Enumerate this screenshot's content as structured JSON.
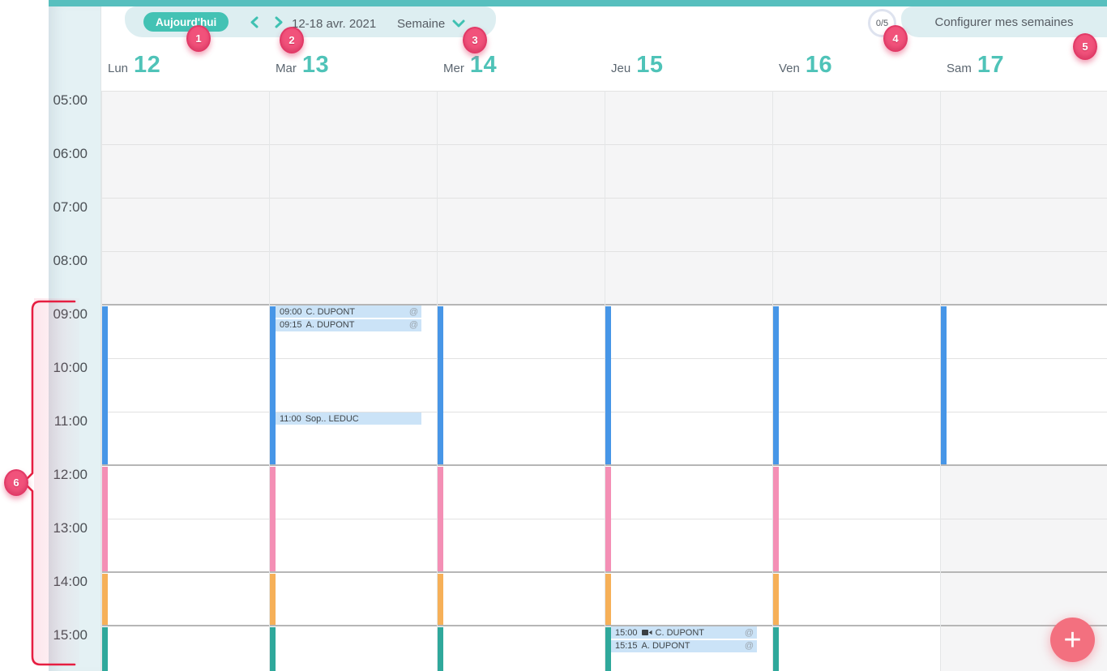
{
  "toolbar": {
    "today_label": "Aujourd'hui",
    "prev_icon": "chevron-left",
    "next_icon": "chevron-right",
    "date_range": "12-18 avr. 2021",
    "view_value": "Semaine",
    "counter_badge": "0/5",
    "configure_label": "Configurer mes semaines"
  },
  "week": {
    "days": [
      {
        "name": "Lun",
        "number": "12"
      },
      {
        "name": "Mar",
        "number": "13"
      },
      {
        "name": "Mer",
        "number": "14"
      },
      {
        "name": "Jeu",
        "number": "15"
      },
      {
        "name": "Ven",
        "number": "16"
      },
      {
        "name": "Sam",
        "number": "17"
      }
    ]
  },
  "time_axis": {
    "labels": [
      "05:00",
      "06:00",
      "07:00",
      "08:00",
      "09:00",
      "10:00",
      "11:00",
      "12:00",
      "13:00",
      "14:00",
      "15:00"
    ],
    "emphasized_lines": [
      "09:00",
      "12:00",
      "14:00",
      "15:00"
    ]
  },
  "events": [
    {
      "day_index": 1,
      "time": "09:00",
      "title": "C. DUPONT",
      "badge": "@",
      "icon": null
    },
    {
      "day_index": 1,
      "time": "09:15",
      "title": "A. DUPONT",
      "badge": "@",
      "icon": null
    },
    {
      "day_index": 1,
      "time": "11:00",
      "title": "Sop.. LEDUC",
      "badge": "",
      "icon": null
    },
    {
      "day_index": 3,
      "time": "15:00",
      "title": "C. DUPONT",
      "badge": "@",
      "icon": "video-camera"
    },
    {
      "day_index": 3,
      "time": "15:15",
      "title": "A. DUPONT",
      "badge": "@",
      "icon": null
    }
  ],
  "availability_bars": [
    {
      "color": "#4796e7",
      "start": "09:00",
      "end": "12:00",
      "day_indexes": [
        0,
        1,
        2,
        3,
        4,
        5
      ]
    },
    {
      "color": "#f48fb5",
      "start": "12:00",
      "end": "14:00",
      "day_indexes": [
        0,
        1,
        2,
        3,
        4
      ]
    },
    {
      "color": "#f6b058",
      "start": "14:00",
      "end": "15:00",
      "day_indexes": [
        0,
        1,
        2,
        3,
        4
      ]
    },
    {
      "color": "#2fa89b",
      "start": "15:00",
      "end": null,
      "day_indexes": [
        0,
        1,
        2,
        3,
        4
      ]
    }
  ],
  "closed_zones": [
    {
      "day_indexes": [
        0,
        1,
        2,
        3,
        4,
        5
      ],
      "start": "05:00",
      "end": "09:00"
    },
    {
      "day_indexes": [
        5
      ],
      "start": "12:00",
      "end": null
    }
  ],
  "annotations": {
    "badges": [
      "1",
      "2",
      "3",
      "4",
      "5",
      "6"
    ]
  },
  "fab": {
    "plus_label": "+"
  },
  "colors": {
    "brand_teal": "#4fc3b8",
    "topbar_teal": "#57bfbe",
    "toolbar_bg": "#ddeef1",
    "gutter_bg": "#e4f1f4",
    "event_bg": "#cbe3f7",
    "closed_bg": "#f5f5f6",
    "annotation_pink": "#f1527b",
    "fab_pink": "#f3707f"
  }
}
